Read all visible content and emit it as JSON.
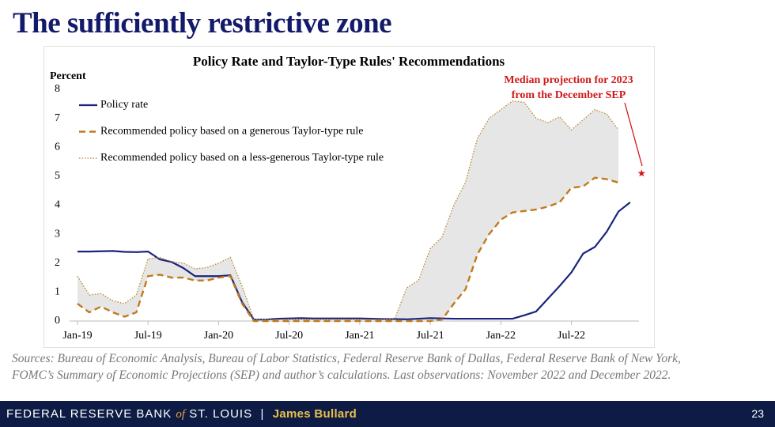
{
  "header": {
    "title": "The sufficiently restrictive zone"
  },
  "chart_data": {
    "type": "line",
    "title": "Policy Rate and Taylor-Type Rules' Recommendations",
    "y_label": "Percent",
    "categories": [
      "Jan-19",
      null,
      null,
      null,
      null,
      null,
      "Jul-19",
      null,
      null,
      null,
      null,
      null,
      "Jan-20",
      null,
      null,
      null,
      null,
      null,
      "Jul-20",
      null,
      null,
      null,
      null,
      null,
      "Jan-21",
      null,
      null,
      null,
      null,
      null,
      "Jul-21",
      null,
      null,
      null,
      null,
      null,
      "Jan-22",
      null,
      null,
      null,
      null,
      null,
      "Jul-22",
      null,
      null,
      null,
      null,
      null,
      null
    ],
    "ylim": [
      0,
      8
    ],
    "yticks": [
      0,
      1,
      2,
      3,
      4,
      5,
      6,
      7,
      8
    ],
    "series": [
      {
        "name": "Policy rate",
        "color": "#1a237e",
        "style": "solid",
        "values": [
          2.4,
          2.4,
          2.41,
          2.42,
          2.39,
          2.38,
          2.4,
          2.13,
          2.04,
          1.83,
          1.55,
          1.55,
          1.55,
          1.58,
          0.65,
          0.05,
          0.05,
          0.08,
          0.09,
          0.1,
          0.09,
          0.09,
          0.09,
          0.09,
          0.09,
          0.08,
          0.07,
          0.07,
          0.06,
          0.08,
          0.1,
          0.09,
          0.08,
          0.08,
          0.08,
          0.08,
          0.08,
          0.08,
          0.2,
          0.33,
          0.77,
          1.21,
          1.68,
          2.33,
          2.56,
          3.08,
          3.78,
          4.1,
          null
        ]
      },
      {
        "name": "Recommended policy based on a generous Taylor-type rule",
        "color": "#c07a1c",
        "style": "dashed",
        "values": [
          0.6,
          0.3,
          0.5,
          0.3,
          0.15,
          0.3,
          1.55,
          1.6,
          1.5,
          1.5,
          1.4,
          1.4,
          1.5,
          1.55,
          0.6,
          0,
          0,
          0,
          0,
          0,
          0,
          0,
          0,
          0,
          0,
          0,
          0,
          0,
          0,
          0,
          0,
          0.05,
          0.6,
          1.1,
          2.3,
          3.0,
          3.5,
          3.75,
          3.8,
          3.85,
          3.95,
          4.1,
          4.6,
          4.65,
          4.95,
          4.9,
          4.78,
          null,
          null
        ]
      },
      {
        "name": "Recommended policy based on a less-generous Taylor-type rule",
        "color": "#b8862b",
        "style": "dotted",
        "values": [
          1.55,
          0.9,
          0.95,
          0.7,
          0.6,
          0.9,
          2.15,
          2.2,
          2.05,
          2.0,
          1.8,
          1.85,
          2.0,
          2.2,
          1.2,
          0.05,
          0.05,
          0.05,
          0.05,
          0.05,
          0.05,
          0.05,
          0.05,
          0.05,
          0.05,
          0.05,
          0.05,
          0.1,
          1.15,
          1.4,
          2.5,
          2.9,
          4.0,
          4.8,
          6.3,
          7.0,
          7.3,
          7.6,
          7.55,
          7.0,
          6.85,
          7.05,
          6.6,
          6.95,
          7.3,
          7.15,
          6.6,
          null,
          null
        ]
      }
    ],
    "projection": {
      "lines": [
        "Median projection for 2023",
        "from the December SEP"
      ],
      "value": 5.1,
      "color": "#d01818"
    },
    "legend": "upper left"
  },
  "sources": "Sources: Bureau of Economic Analysis, Bureau of Labor Statistics, Federal Reserve Bank of Dallas, Federal Reserve Bank of New York, FOMC’s Summary of Economic Projections (SEP) and author’s calculations. Last observations: November 2022 and December 2022.",
  "footer": {
    "bank1": "FEDERAL RESERVE BANK",
    "of": "of",
    "bank2": "ST. LOUIS",
    "sep": "|",
    "speaker": "James Bullard",
    "page": "23"
  }
}
